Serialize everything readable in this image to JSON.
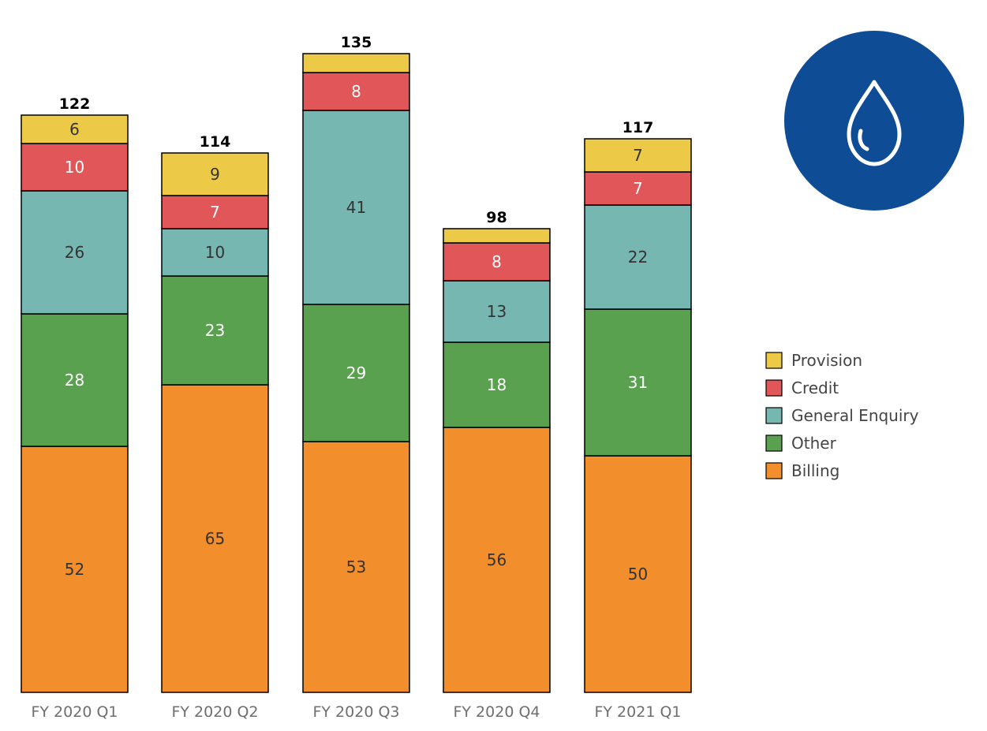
{
  "chart_data": {
    "type": "bar",
    "stacked": true,
    "categories": [
      "FY 2020 Q1",
      "FY 2020 Q2",
      "FY 2020 Q3",
      "FY 2020 Q4",
      "FY 2021 Q1"
    ],
    "series": [
      {
        "name": "Billing",
        "color": "#F28E2B",
        "label_color": "#333333",
        "values": [
          52,
          65,
          53,
          56,
          50
        ]
      },
      {
        "name": "Other",
        "color": "#59A14F",
        "label_color": "#ffffff",
        "values": [
          28,
          23,
          29,
          18,
          31
        ]
      },
      {
        "name": "General Enquiry",
        "color": "#76B7B2",
        "label_color": "#333333",
        "values": [
          26,
          10,
          41,
          13,
          22
        ]
      },
      {
        "name": "Credit",
        "color": "#E15759",
        "label_color": "#ffffff",
        "values": [
          10,
          7,
          8,
          8,
          7
        ]
      },
      {
        "name": "Provision",
        "color": "#EDC948",
        "label_color": "#333333",
        "values": [
          6,
          9,
          4,
          3,
          7
        ]
      }
    ],
    "segment_labels": [
      [
        "52",
        "28",
        "26",
        "10",
        "6"
      ],
      [
        "65",
        "23",
        "10",
        "7",
        "9"
      ],
      [
        "53",
        "29",
        "41",
        "8",
        ""
      ],
      [
        "56",
        "18",
        "13",
        "8",
        ""
      ],
      [
        "50",
        "31",
        "22",
        "7",
        "7"
      ]
    ],
    "totals": [
      122,
      114,
      135,
      98,
      117
    ],
    "legend": {
      "placement": "right",
      "order": [
        "Provision",
        "Credit",
        "General Enquiry",
        "Other",
        "Billing"
      ]
    },
    "ylim": [
      0,
      135
    ],
    "grid": false,
    "title": "",
    "xlabel": "",
    "ylabel": ""
  },
  "icon": {
    "name": "water-drop-icon",
    "background_color": "#0F4C96"
  }
}
